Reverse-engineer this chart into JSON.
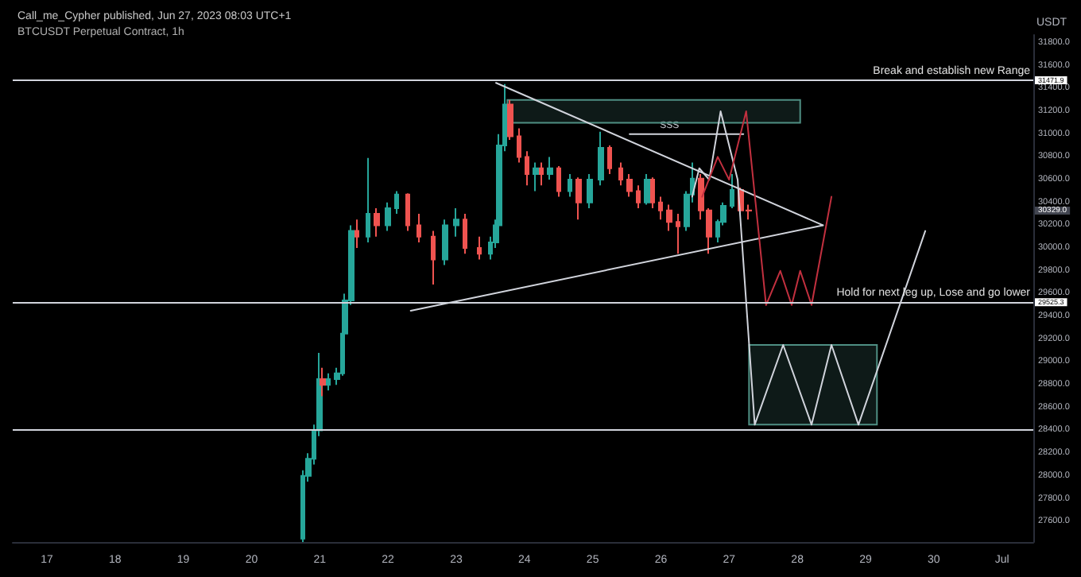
{
  "chart_data": {
    "type": "candlestick",
    "title": "Call_me_Cypher published, Jun 27, 2023 08:03 UTC+1",
    "subtitle": "BTCUSDT Perpetual Contract, 1h",
    "ylabel": "USDT",
    "xlim": [
      "2023-06-16T12:00",
      "2023-07-01T11:00"
    ],
    "xticks": [
      {
        "value": "2023-06-17",
        "label": "17"
      },
      {
        "value": "2023-06-18",
        "label": "18"
      },
      {
        "value": "2023-06-19",
        "label": "19"
      },
      {
        "value": "2023-06-20",
        "label": "20"
      },
      {
        "value": "2023-06-21",
        "label": "21"
      },
      {
        "value": "2023-06-22",
        "label": "22"
      },
      {
        "value": "2023-06-23",
        "label": "23"
      },
      {
        "value": "2023-06-24",
        "label": "24"
      },
      {
        "value": "2023-06-25",
        "label": "25"
      },
      {
        "value": "2023-06-26",
        "label": "26"
      },
      {
        "value": "2023-06-27",
        "label": "27"
      },
      {
        "value": "2023-06-28",
        "label": "28"
      },
      {
        "value": "2023-06-29",
        "label": "29"
      },
      {
        "value": "2023-06-30",
        "label": "30"
      },
      {
        "value": "2023-07-01",
        "label": "Jul"
      }
    ],
    "ylim": [
      27420,
      31870
    ],
    "yticks": [
      {
        "value": 27600,
        "label": "27600.0"
      },
      {
        "value": 27800,
        "label": "27800.0"
      },
      {
        "value": 28000,
        "label": "28000.0"
      },
      {
        "value": 28200,
        "label": "28200.0"
      },
      {
        "value": 28400,
        "label": "28400.0"
      },
      {
        "value": 28600,
        "label": "28600.0"
      },
      {
        "value": 28800,
        "label": "28800.0"
      },
      {
        "value": 29000,
        "label": "29000.0"
      },
      {
        "value": 29200,
        "label": "29200.0"
      },
      {
        "value": 29400,
        "label": "29400.0"
      },
      {
        "value": 29600,
        "label": "29600.0"
      },
      {
        "value": 29800,
        "label": "29800.0"
      },
      {
        "value": 30000,
        "label": "30000.0"
      },
      {
        "value": 30200,
        "label": "30200.0"
      },
      {
        "value": 30400,
        "label": "30400.0"
      },
      {
        "value": 30600,
        "label": "30600.0"
      },
      {
        "value": 30800,
        "label": "30800.0"
      },
      {
        "value": 31000,
        "label": "31000.0"
      },
      {
        "value": 31200,
        "label": "31200.0"
      },
      {
        "value": 31400,
        "label": "31400.0"
      },
      {
        "value": 31600,
        "label": "31600.0"
      },
      {
        "value": 31800,
        "label": "31800.0"
      }
    ],
    "grid": false,
    "marker": "none",
    "line_style": "solid",
    "series": [
      {
        "x": [
          "2023-06-20T18:00",
          "2023-06-20T20:00",
          "2023-06-20T22:00",
          "2023-06-21T00:00",
          "2023-06-21T01:00",
          "2023-06-21T03:00",
          "2023-06-21T06:00",
          "2023-06-21T08:00",
          "2023-06-21T09:00",
          "2023-06-21T11:00",
          "2023-06-21T13:00",
          "2023-06-21T17:00",
          "2023-06-21T20:00",
          "2023-06-22T00:00",
          "2023-06-22T03:00",
          "2023-06-22T07:00",
          "2023-06-22T11:00",
          "2023-06-22T16:00",
          "2023-06-22T20:00",
          "2023-06-23T00:00",
          "2023-06-23T03:00",
          "2023-06-23T08:00",
          "2023-06-23T12:00",
          "2023-06-23T14:00",
          "2023-06-23T15:00",
          "2023-06-23T17:00",
          "2023-06-23T19:00",
          "2023-06-23T22:00",
          "2023-06-24T01:00",
          "2023-06-24T04:00",
          "2023-06-24T06:00",
          "2023-06-24T09:00",
          "2023-06-24T12:00",
          "2023-06-24T16:00",
          "2023-06-24T19:00",
          "2023-06-24T23:00",
          "2023-06-25T03:00",
          "2023-06-25T06:00",
          "2023-06-25T10:00",
          "2023-06-25T13:00",
          "2023-06-25T16:00",
          "2023-06-25T19:00",
          "2023-06-25T21:00",
          "2023-06-26T00:00",
          "2023-06-26T03:00",
          "2023-06-26T06:00",
          "2023-06-26T09:00",
          "2023-06-26T11:00",
          "2023-06-26T14:00",
          "2023-06-26T17:00",
          "2023-06-26T20:00",
          "2023-06-26T22:00",
          "2023-06-27T01:00",
          "2023-06-27T04:00",
          "2023-06-27T07:00"
        ],
        "ohlc": [
          [
            27450,
            28050,
            27420,
            28000
          ],
          [
            28000,
            28200,
            27950,
            28150
          ],
          [
            28150,
            28450,
            28100,
            28400
          ],
          [
            28400,
            29080,
            28350,
            28850
          ],
          [
            28850,
            28950,
            28700,
            28800
          ],
          [
            28800,
            28900,
            28750,
            28850
          ],
          [
            28850,
            28950,
            28800,
            28900
          ],
          [
            28900,
            29300,
            28880,
            29250
          ],
          [
            29250,
            29600,
            29200,
            29540
          ],
          [
            29540,
            30200,
            29500,
            30150
          ],
          [
            30150,
            30250,
            30000,
            30100
          ],
          [
            30100,
            30790,
            30050,
            30300
          ],
          [
            30300,
            30350,
            30100,
            30200
          ],
          [
            30200,
            30400,
            30150,
            30350
          ],
          [
            30350,
            30500,
            30300,
            30470
          ],
          [
            30470,
            30480,
            30150,
            30200
          ],
          [
            30200,
            30300,
            30050,
            30100
          ],
          [
            30100,
            30150,
            29680,
            29900
          ],
          [
            29900,
            30250,
            29850,
            30200
          ],
          [
            30200,
            30350,
            30100,
            30250
          ],
          [
            30250,
            30300,
            29950,
            30000
          ],
          [
            30000,
            30100,
            29900,
            29950
          ],
          [
            29950,
            30100,
            29900,
            30050
          ],
          [
            30050,
            30250,
            30000,
            30200
          ],
          [
            30200,
            31000,
            30150,
            30900
          ],
          [
            30900,
            31440,
            30850,
            31260
          ],
          [
            31260,
            31300,
            30950,
            30980
          ],
          [
            30980,
            31050,
            30750,
            30800
          ],
          [
            30800,
            30850,
            30550,
            30650
          ],
          [
            30650,
            30750,
            30500,
            30700
          ],
          [
            30700,
            30750,
            30550,
            30650
          ],
          [
            30650,
            30800,
            30600,
            30700
          ],
          [
            30700,
            30720,
            30450,
            30500
          ],
          [
            30500,
            30650,
            30450,
            30600
          ],
          [
            30600,
            30620,
            30250,
            30400
          ],
          [
            30400,
            30650,
            30350,
            30600
          ],
          [
            30600,
            31020,
            30550,
            30880
          ],
          [
            30880,
            30900,
            30650,
            30700
          ],
          [
            30700,
            30750,
            30550,
            30600
          ],
          [
            30600,
            30650,
            30450,
            30500
          ],
          [
            30500,
            30550,
            30350,
            30400
          ],
          [
            30400,
            30650,
            30380,
            30600
          ],
          [
            30600,
            30620,
            30350,
            30400
          ],
          [
            30400,
            30450,
            30250,
            30330
          ],
          [
            30330,
            30380,
            30150,
            30230
          ],
          [
            30230,
            30300,
            29950,
            30190
          ],
          [
            30190,
            30500,
            30150,
            30470
          ],
          [
            30470,
            30750,
            30400,
            30610
          ],
          [
            30610,
            30650,
            30250,
            30330
          ],
          [
            30330,
            30350,
            29950,
            30100
          ],
          [
            30100,
            30250,
            30050,
            30230
          ],
          [
            30230,
            30400,
            30200,
            30370
          ],
          [
            30370,
            30650,
            30350,
            30510
          ],
          [
            30510,
            30530,
            30300,
            30330
          ],
          [
            30330,
            30380,
            30250,
            30329
          ]
        ],
        "colors": [
          "#26a69a",
          "#26a69a",
          "#26a69a",
          "#26a69a",
          "#ef5350",
          "#26a69a",
          "#26a69a",
          "#26a69a",
          "#26a69a",
          "#26a69a",
          "#ef5350",
          "#26a69a",
          "#ef5350",
          "#26a69a",
          "#26a69a",
          "#ef5350",
          "#ef5350",
          "#ef5350",
          "#26a69a",
          "#26a69a",
          "#ef5350",
          "#ef5350",
          "#26a69a",
          "#26a69a",
          "#26a69a",
          "#26a69a",
          "#ef5350",
          "#ef5350",
          "#ef5350",
          "#26a69a",
          "#ef5350",
          "#26a69a",
          "#ef5350",
          "#26a69a",
          "#ef5350",
          "#26a69a",
          "#26a69a",
          "#ef5350",
          "#ef5350",
          "#ef5350",
          "#ef5350",
          "#26a69a",
          "#ef5350",
          "#ef5350",
          "#ef5350",
          "#ef5350",
          "#26a69a",
          "#26a69a",
          "#ef5350",
          "#ef5350",
          "#26a69a",
          "#26a69a",
          "#26a69a",
          "#ef5350",
          "#ef5350"
        ]
      },
      {
        "type": "line",
        "color": "#d1d4dc",
        "x": [
          "2023-06-23T14:00",
          "2023-06-28T09:00"
        ],
        "values": [
          31450,
          30200
        ]
      },
      {
        "type": "line",
        "color": "#d1d4dc",
        "x": [
          "2023-06-22T08:00",
          "2023-06-28T09:00"
        ],
        "values": [
          29450,
          30200
        ]
      },
      {
        "type": "line",
        "color": "#d1d4dc",
        "x": [
          "2023-06-25T13:00",
          "2023-06-27T05:00"
        ],
        "values": [
          31000,
          31000
        ]
      },
      {
        "type": "line",
        "color": "#4f8f83",
        "x": [
          "2023-06-23T18:00",
          "2023-06-28T01:00"
        ],
        "values": [
          null,
          null
        ],
        "lower": [
          31100,
          31100
        ],
        "upper": [
          31300,
          31300
        ]
      },
      {
        "type": "line",
        "color": "#4f8f83",
        "x": [
          "2023-06-27T07:00",
          "2023-06-29T04:00"
        ],
        "values": [
          null,
          null
        ],
        "lower": [
          28450,
          28450
        ],
        "upper": [
          29150,
          29150
        ]
      },
      {
        "type": "line",
        "color": "#d1d4dc",
        "x": [
          "2023-06-26T11:00",
          "2023-06-26T13:30",
          "2023-06-26T17:00",
          "2023-06-26T21:00",
          "2023-06-27T03:00",
          "2023-06-27T09:00",
          "2023-06-27T19:00",
          "2023-06-28T05:00",
          "2023-06-28T12:00",
          "2023-06-28T21:30",
          "2023-06-29T21:00"
        ],
        "values": [
          30450,
          30700,
          30600,
          31200,
          30600,
          28450,
          29150,
          28450,
          29150,
          28450,
          30150
        ]
      },
      {
        "type": "line",
        "color": "#c2303f",
        "x": [
          "2023-06-26T14:30",
          "2023-06-26T20:00",
          "2023-06-27T00:00",
          "2023-06-27T06:00",
          "2023-06-27T13:00",
          "2023-06-27T18:00",
          "2023-06-27T22:00",
          "2023-06-28T01:00",
          "2023-06-28T05:00",
          "2023-06-28T12:00"
        ],
        "values": [
          30450,
          30800,
          30600,
          31200,
          29500,
          29800,
          29500,
          29800,
          29500,
          30450
        ]
      }
    ],
    "ref_lines": [
      {
        "axis": "y",
        "value": 31471.9,
        "label": "Break and establish new Range",
        "color": "#d1d4dc"
      },
      {
        "axis": "y",
        "value": 29525.3,
        "label": "Hold for next leg up, Lose and go lower",
        "color": "#d1d4dc"
      },
      {
        "axis": "y",
        "value": 28400,
        "label": null,
        "color": "#d1d4dc"
      }
    ],
    "annotations": [
      {
        "text": "SSS",
        "x": "2023-06-26T03:00",
        "y": 31000
      },
      "30329.0",
      {
        "text": "31471.9",
        "x": "2023-07-01T11:00",
        "y": 31471.9
      },
      {
        "text": "29525.3",
        "x": "2023-07-01T11:00",
        "y": 29525.3
      }
    ]
  }
}
